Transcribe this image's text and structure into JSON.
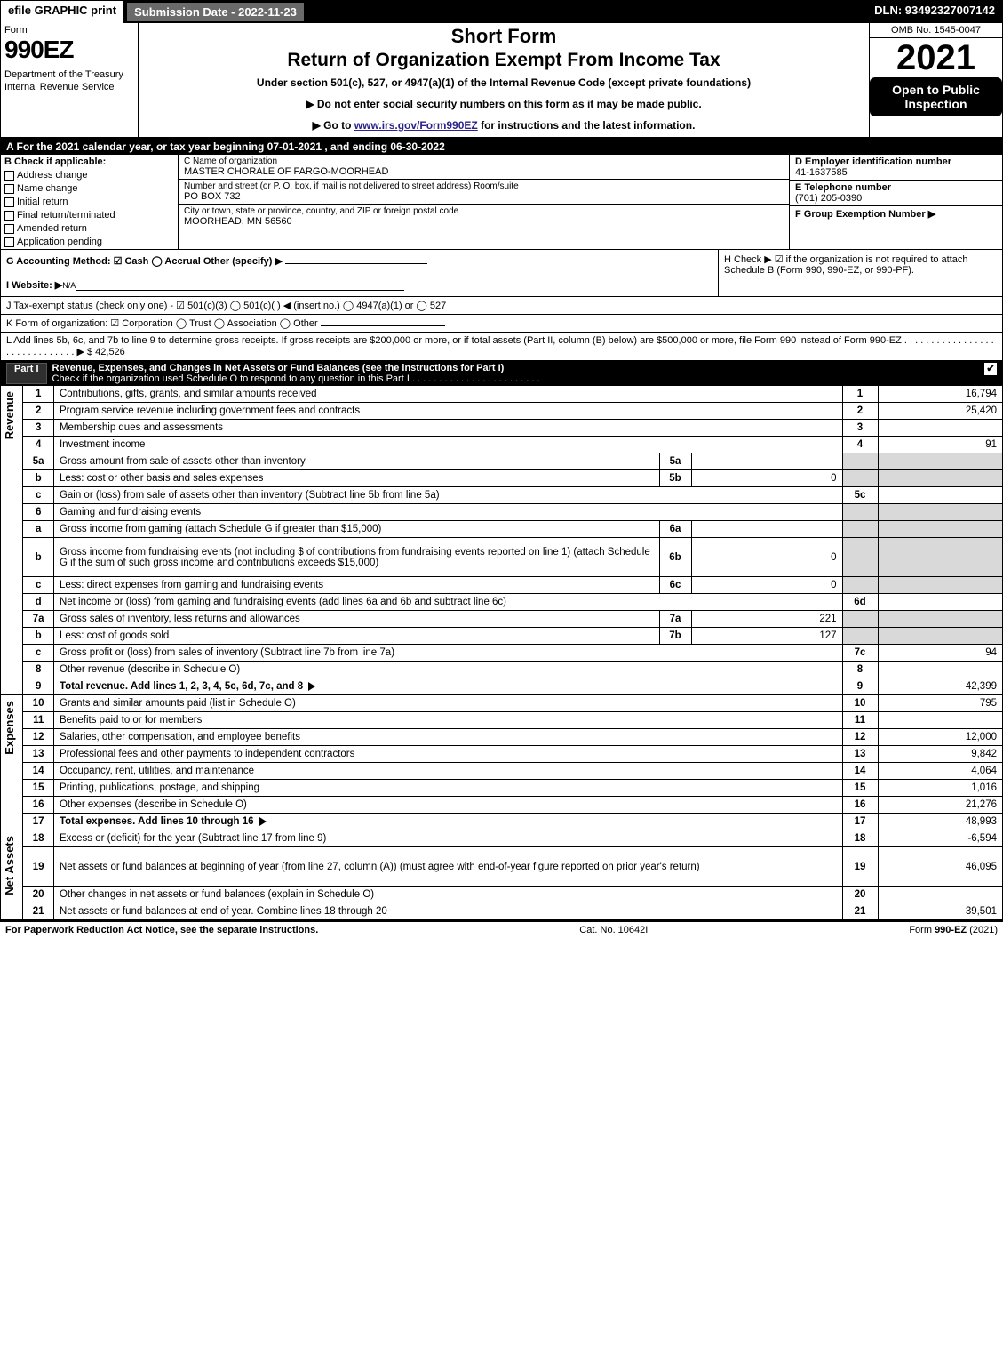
{
  "topbar": {
    "efile": "efile GRAPHIC print",
    "sub": "Submission Date - 2022-11-23",
    "dln": "DLN: 93492327007142"
  },
  "hdr": {
    "form": "Form",
    "num": "990EZ",
    "dept": "Department of the Treasury\nInternal Revenue Service",
    "title1": "Short Form",
    "title2": "Return of Organization Exempt From Income Tax",
    "under": "Under section 501(c), 527, or 4947(a)(1) of the Internal Revenue Code (except private foundations)",
    "b1": "▶ Do not enter social security numbers on this form as it may be made public.",
    "b2_pre": "▶ Go to ",
    "b2_link": "www.irs.gov/Form990EZ",
    "b2_post": " for instructions and the latest information.",
    "omb": "OMB No. 1545-0047",
    "year": "2021",
    "open": "Open to Public Inspection"
  },
  "A": "A  For the 2021 calendar year, or tax year beginning 07-01-2021 , and ending 06-30-2022",
  "B": {
    "title": "B  Check if applicable:",
    "opts": [
      "Address change",
      "Name change",
      "Initial return",
      "Final return/terminated",
      "Amended return",
      "Application pending"
    ]
  },
  "C": {
    "name_lbl": "C Name of organization",
    "name": "MASTER CHORALE OF FARGO-MOORHEAD",
    "street_lbl": "Number and street (or P. O. box, if mail is not delivered to street address)       Room/suite",
    "street": "PO BOX 732",
    "city_lbl": "City or town, state or province, country, and ZIP or foreign postal code",
    "city": "MOORHEAD, MN  56560"
  },
  "D": {
    "lbl": "D Employer identification number",
    "val": "41-1637585"
  },
  "E": {
    "lbl": "E Telephone number",
    "val": "(701) 205-0390"
  },
  "F": {
    "lbl": "F Group Exemption Number  ▶"
  },
  "G": "G Accounting Method:   ☑ Cash  ◯ Accrual   Other (specify) ▶ ",
  "H": "H   Check ▶  ☑  if the organization is not required to attach Schedule B (Form 990, 990-EZ, or 990-PF).",
  "I_pre": "I Website: ▶",
  "I_val": "N/A",
  "J": "J Tax-exempt status (check only one) -  ☑ 501(c)(3) ◯ 501(c)(  ) ◀ (insert no.) ◯ 4947(a)(1) or ◯ 527",
  "K": "K Form of organization:   ☑ Corporation  ◯ Trust  ◯ Association  ◯ Other  ",
  "L": "L Add lines 5b, 6c, and 7b to line 9 to determine gross receipts. If gross receipts are $200,000 or more, or if total assets (Part II, column (B) below) are $500,000 or more, file Form 990 instead of Form 990-EZ .  .  .  .  .  .  .  .  .  .  .  .  .  .  .  .  .  .  .  .  .  .  .  .  .  .  .  .  .  . ▶ $ 42,526",
  "part1": {
    "title": "Revenue, Expenses, and Changes in Net Assets or Fund Balances (see the instructions for Part I)",
    "sub": "Check if the organization used Schedule O to respond to any question in this Part I"
  },
  "rows": [
    {
      "n": "1",
      "d": "Contributions, gifts, grants, and similar amounts received",
      "r": "1",
      "a": "16,794"
    },
    {
      "n": "2",
      "d": "Program service revenue including government fees and contracts",
      "r": "2",
      "a": "25,420"
    },
    {
      "n": "3",
      "d": "Membership dues and assessments",
      "r": "3",
      "a": ""
    },
    {
      "n": "4",
      "d": "Investment income",
      "r": "4",
      "a": "91"
    },
    {
      "n": "5a",
      "d": "Gross amount from sale of assets other than inventory",
      "sn": "5a",
      "sv": ""
    },
    {
      "n": "b",
      "d": "Less: cost or other basis and sales expenses",
      "sn": "5b",
      "sv": "0"
    },
    {
      "n": "c",
      "d": "Gain or (loss) from sale of assets other than inventory (Subtract line 5b from line 5a)",
      "r": "5c",
      "a": ""
    },
    {
      "n": "6",
      "d": "Gaming and fundraising events"
    },
    {
      "n": "a",
      "d": "Gross income from gaming (attach Schedule G if greater than $15,000)",
      "sn": "6a",
      "sv": ""
    },
    {
      "n": "b",
      "d": "Gross income from fundraising events (not including $                           of contributions from fundraising events reported on line 1) (attach Schedule G if the sum of such gross income and contributions exceeds $15,000)",
      "sn": "6b",
      "sv": "0",
      "tall": true
    },
    {
      "n": "c",
      "d": "Less: direct expenses from gaming and fundraising events",
      "sn": "6c",
      "sv": "0"
    },
    {
      "n": "d",
      "d": "Net income or (loss) from gaming and fundraising events (add lines 6a and 6b and subtract line 6c)",
      "r": "6d",
      "a": ""
    },
    {
      "n": "7a",
      "d": "Gross sales of inventory, less returns and allowances",
      "sn": "7a",
      "sv": "221"
    },
    {
      "n": "b",
      "d": "Less: cost of goods sold",
      "sn": "7b",
      "sv": "127"
    },
    {
      "n": "c",
      "d": "Gross profit or (loss) from sales of inventory (Subtract line 7b from line 7a)",
      "r": "7c",
      "a": "94"
    },
    {
      "n": "8",
      "d": "Other revenue (describe in Schedule O)",
      "r": "8",
      "a": ""
    },
    {
      "n": "9",
      "d": "Total revenue. Add lines 1, 2, 3, 4, 5c, 6d, 7c, and 8",
      "r": "9",
      "a": "42,399",
      "bold": true,
      "arrow": true
    }
  ],
  "exp": [
    {
      "n": "10",
      "d": "Grants and similar amounts paid (list in Schedule O)",
      "r": "10",
      "a": "795"
    },
    {
      "n": "11",
      "d": "Benefits paid to or for members",
      "r": "11",
      "a": ""
    },
    {
      "n": "12",
      "d": "Salaries, other compensation, and employee benefits",
      "r": "12",
      "a": "12,000"
    },
    {
      "n": "13",
      "d": "Professional fees and other payments to independent contractors",
      "r": "13",
      "a": "9,842"
    },
    {
      "n": "14",
      "d": "Occupancy, rent, utilities, and maintenance",
      "r": "14",
      "a": "4,064"
    },
    {
      "n": "15",
      "d": "Printing, publications, postage, and shipping",
      "r": "15",
      "a": "1,016"
    },
    {
      "n": "16",
      "d": "Other expenses (describe in Schedule O)",
      "r": "16",
      "a": "21,276"
    },
    {
      "n": "17",
      "d": "Total expenses. Add lines 10 through 16",
      "r": "17",
      "a": "48,993",
      "bold": true,
      "arrow": true
    }
  ],
  "net": [
    {
      "n": "18",
      "d": "Excess or (deficit) for the year (Subtract line 17 from line 9)",
      "r": "18",
      "a": "-6,594"
    },
    {
      "n": "19",
      "d": "Net assets or fund balances at beginning of year (from line 27, column (A)) (must agree with end-of-year figure reported on prior year's return)",
      "r": "19",
      "a": "46,095",
      "tall": true
    },
    {
      "n": "20",
      "d": "Other changes in net assets or fund balances (explain in Schedule O)",
      "r": "20",
      "a": ""
    },
    {
      "n": "21",
      "d": "Net assets or fund balances at end of year. Combine lines 18 through 20",
      "r": "21",
      "a": "39,501"
    }
  ],
  "sections": {
    "rev": "Revenue",
    "exp": "Expenses",
    "net": "Net Assets"
  },
  "foot": {
    "l": "For Paperwork Reduction Act Notice, see the separate instructions.",
    "c": "Cat. No. 10642I",
    "r": "Form 990-EZ (2021)"
  }
}
